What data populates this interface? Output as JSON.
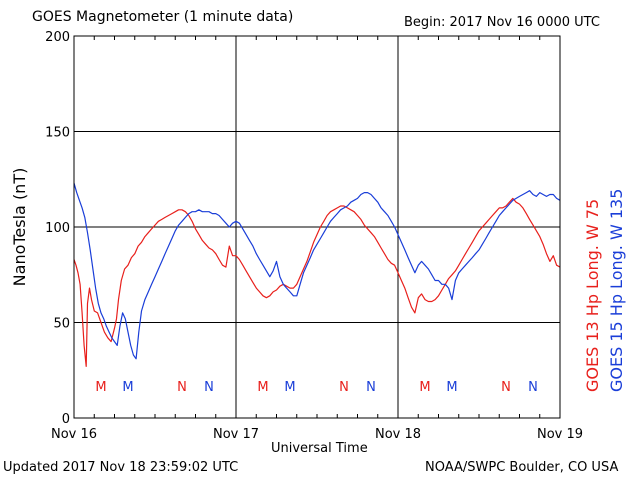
{
  "header": {
    "title": "GOES Magnetometer (1 minute data)",
    "begin": "Begin:  2017 Nov 16 0000 UTC"
  },
  "footer": {
    "updated": "Updated 2017 Nov 18 23:59:02 UTC",
    "credit": "NOAA/SWPC Boulder, CO USA"
  },
  "colors": {
    "goes13": "#e8201c",
    "goes15": "#1a3ed8",
    "grid": "#000000"
  },
  "chart_data": {
    "type": "line",
    "xlabel": "Universal Time",
    "ylabel": "NanoTesla (nT)",
    "ylim": [
      0,
      200
    ],
    "xlim": [
      0,
      72
    ],
    "x_unit": "hours since 2017 Nov 16 0000 UTC",
    "grid": true,
    "legend_position": "right-vertical",
    "y_ticks": [
      0,
      50,
      100,
      150,
      200
    ],
    "x_ticks": [
      {
        "x": 0,
        "label": "Nov 16"
      },
      {
        "x": 24,
        "label": "Nov 17"
      },
      {
        "x": 48,
        "label": "Nov 18"
      },
      {
        "x": 72,
        "label": "Nov 19"
      }
    ],
    "mn_markers": [
      {
        "x": 4,
        "label": "M",
        "series": "GOES 13"
      },
      {
        "x": 8,
        "label": "M",
        "series": "GOES 15"
      },
      {
        "x": 16,
        "label": "N",
        "series": "GOES 13"
      },
      {
        "x": 20,
        "label": "N",
        "series": "GOES 15"
      },
      {
        "x": 28,
        "label": "M",
        "series": "GOES 13"
      },
      {
        "x": 32,
        "label": "M",
        "series": "GOES 15"
      },
      {
        "x": 40,
        "label": "N",
        "series": "GOES 13"
      },
      {
        "x": 44,
        "label": "N",
        "series": "GOES 15"
      },
      {
        "x": 52,
        "label": "M",
        "series": "GOES 13"
      },
      {
        "x": 56,
        "label": "M",
        "series": "GOES 15"
      },
      {
        "x": 64,
        "label": "N",
        "series": "GOES 13"
      },
      {
        "x": 68,
        "label": "N",
        "series": "GOES 15"
      }
    ],
    "series": [
      {
        "name": "GOES 13 Hp  Long. W 75",
        "color": "#e8201c",
        "points": [
          [
            0,
            83
          ],
          [
            0.3,
            80
          ],
          [
            0.6,
            76
          ],
          [
            0.9,
            70
          ],
          [
            1.2,
            55
          ],
          [
            1.5,
            38
          ],
          [
            1.8,
            27
          ],
          [
            2.0,
            60
          ],
          [
            2.3,
            68
          ],
          [
            2.6,
            62
          ],
          [
            3.0,
            56
          ],
          [
            3.5,
            55
          ],
          [
            4.0,
            50
          ],
          [
            4.5,
            45
          ],
          [
            5.0,
            42
          ],
          [
            5.5,
            40
          ],
          [
            6.0,
            47
          ],
          [
            6.3,
            52
          ],
          [
            6.6,
            62
          ],
          [
            7.0,
            72
          ],
          [
            7.5,
            78
          ],
          [
            8.0,
            80
          ],
          [
            8.5,
            84
          ],
          [
            9.0,
            86
          ],
          [
            9.5,
            90
          ],
          [
            10.0,
            92
          ],
          [
            10.5,
            95
          ],
          [
            11.0,
            97
          ],
          [
            11.5,
            99
          ],
          [
            12.0,
            101
          ],
          [
            12.5,
            103
          ],
          [
            13.0,
            104
          ],
          [
            13.5,
            105
          ],
          [
            14.0,
            106
          ],
          [
            14.5,
            107
          ],
          [
            15.0,
            108
          ],
          [
            15.5,
            109
          ],
          [
            16.0,
            109
          ],
          [
            16.5,
            108
          ],
          [
            17.0,
            106
          ],
          [
            17.5,
            103
          ],
          [
            18.0,
            99
          ],
          [
            18.5,
            96
          ],
          [
            19.0,
            93
          ],
          [
            19.5,
            91
          ],
          [
            20.0,
            89
          ],
          [
            20.5,
            88
          ],
          [
            21.0,
            86
          ],
          [
            21.5,
            83
          ],
          [
            22.0,
            80
          ],
          [
            22.5,
            79
          ],
          [
            23.0,
            90
          ],
          [
            23.5,
            85
          ],
          [
            24.0,
            85
          ],
          [
            24.5,
            83
          ],
          [
            25.0,
            80
          ],
          [
            25.5,
            77
          ],
          [
            26.0,
            74
          ],
          [
            26.5,
            71
          ],
          [
            27.0,
            68
          ],
          [
            27.5,
            66
          ],
          [
            28.0,
            64
          ],
          [
            28.5,
            63
          ],
          [
            29.0,
            64
          ],
          [
            29.5,
            66
          ],
          [
            30.0,
            67
          ],
          [
            30.5,
            69
          ],
          [
            31.0,
            70
          ],
          [
            31.5,
            69
          ],
          [
            32.0,
            68
          ],
          [
            32.5,
            68
          ],
          [
            33.0,
            70
          ],
          [
            33.5,
            74
          ],
          [
            34.0,
            78
          ],
          [
            34.5,
            82
          ],
          [
            35.0,
            87
          ],
          [
            35.5,
            92
          ],
          [
            36.0,
            96
          ],
          [
            36.5,
            100
          ],
          [
            37.0,
            103
          ],
          [
            37.5,
            106
          ],
          [
            38.0,
            108
          ],
          [
            38.5,
            109
          ],
          [
            39.0,
            110
          ],
          [
            39.5,
            111
          ],
          [
            40.0,
            111
          ],
          [
            40.5,
            110
          ],
          [
            41.0,
            109
          ],
          [
            41.5,
            108
          ],
          [
            42.0,
            106
          ],
          [
            42.5,
            104
          ],
          [
            43.0,
            101
          ],
          [
            43.5,
            99
          ],
          [
            44.0,
            97
          ],
          [
            44.5,
            95
          ],
          [
            45.0,
            92
          ],
          [
            45.5,
            89
          ],
          [
            46.0,
            86
          ],
          [
            46.5,
            83
          ],
          [
            47.0,
            81
          ],
          [
            47.5,
            80
          ],
          [
            48.0,
            76
          ],
          [
            48.5,
            72
          ],
          [
            49.0,
            68
          ],
          [
            49.5,
            63
          ],
          [
            50.0,
            58
          ],
          [
            50.5,
            55
          ],
          [
            51.0,
            63
          ],
          [
            51.5,
            65
          ],
          [
            52.0,
            62
          ],
          [
            52.5,
            61
          ],
          [
            53.0,
            61
          ],
          [
            53.5,
            62
          ],
          [
            54.0,
            64
          ],
          [
            54.5,
            67
          ],
          [
            55.0,
            70
          ],
          [
            55.5,
            73
          ],
          [
            56.0,
            75
          ],
          [
            56.5,
            77
          ],
          [
            57.0,
            80
          ],
          [
            57.5,
            83
          ],
          [
            58.0,
            86
          ],
          [
            58.5,
            89
          ],
          [
            59.0,
            92
          ],
          [
            59.5,
            95
          ],
          [
            60.0,
            98
          ],
          [
            60.5,
            100
          ],
          [
            61.0,
            102
          ],
          [
            61.5,
            104
          ],
          [
            62.0,
            106
          ],
          [
            62.5,
            108
          ],
          [
            63.0,
            110
          ],
          [
            63.5,
            110
          ],
          [
            64.0,
            111
          ],
          [
            64.5,
            113
          ],
          [
            65.0,
            115
          ],
          [
            65.5,
            113
          ],
          [
            66.0,
            112
          ],
          [
            66.5,
            110
          ],
          [
            67.0,
            107
          ],
          [
            67.5,
            104
          ],
          [
            68.0,
            101
          ],
          [
            68.5,
            98
          ],
          [
            69.0,
            95
          ],
          [
            69.5,
            91
          ],
          [
            70.0,
            86
          ],
          [
            70.5,
            82
          ],
          [
            71.0,
            85
          ],
          [
            71.5,
            80
          ],
          [
            72.0,
            79
          ]
        ]
      },
      {
        "name": "GOES 15 Hp  Long. W 135",
        "color": "#1a3ed8",
        "points": [
          [
            0,
            123
          ],
          [
            0.4,
            118
          ],
          [
            0.8,
            114
          ],
          [
            1.2,
            110
          ],
          [
            1.6,
            105
          ],
          [
            2.0,
            97
          ],
          [
            2.4,
            88
          ],
          [
            2.8,
            78
          ],
          [
            3.2,
            68
          ],
          [
            3.6,
            60
          ],
          [
            4.0,
            55
          ],
          [
            4.4,
            52
          ],
          [
            4.8,
            48
          ],
          [
            5.2,
            45
          ],
          [
            5.6,
            42
          ],
          [
            6.0,
            40
          ],
          [
            6.4,
            38
          ],
          [
            6.8,
            48
          ],
          [
            7.2,
            55
          ],
          [
            7.6,
            52
          ],
          [
            8.0,
            45
          ],
          [
            8.4,
            38
          ],
          [
            8.8,
            33
          ],
          [
            9.2,
            31
          ],
          [
            9.6,
            45
          ],
          [
            10.0,
            56
          ],
          [
            10.5,
            62
          ],
          [
            11.0,
            66
          ],
          [
            11.5,
            70
          ],
          [
            12.0,
            74
          ],
          [
            12.5,
            78
          ],
          [
            13.0,
            82
          ],
          [
            13.5,
            86
          ],
          [
            14.0,
            90
          ],
          [
            14.5,
            94
          ],
          [
            15.0,
            98
          ],
          [
            15.5,
            101
          ],
          [
            16.0,
            103
          ],
          [
            16.5,
            105
          ],
          [
            17.0,
            107
          ],
          [
            17.5,
            108
          ],
          [
            18.0,
            108
          ],
          [
            18.5,
            109
          ],
          [
            19.0,
            108
          ],
          [
            19.5,
            108
          ],
          [
            20.0,
            108
          ],
          [
            20.5,
            107
          ],
          [
            21.0,
            107
          ],
          [
            21.5,
            106
          ],
          [
            22.0,
            104
          ],
          [
            22.5,
            102
          ],
          [
            23.0,
            100
          ],
          [
            23.5,
            102
          ],
          [
            24.0,
            103
          ],
          [
            24.5,
            102
          ],
          [
            25.0,
            99
          ],
          [
            25.5,
            96
          ],
          [
            26.0,
            93
          ],
          [
            26.5,
            90
          ],
          [
            27.0,
            86
          ],
          [
            27.5,
            83
          ],
          [
            28.0,
            80
          ],
          [
            28.5,
            77
          ],
          [
            29.0,
            74
          ],
          [
            29.5,
            77
          ],
          [
            30.0,
            82
          ],
          [
            30.5,
            74
          ],
          [
            31.0,
            70
          ],
          [
            31.5,
            68
          ],
          [
            32.0,
            66
          ],
          [
            32.5,
            64
          ],
          [
            33.0,
            64
          ],
          [
            33.5,
            70
          ],
          [
            34.0,
            76
          ],
          [
            34.5,
            80
          ],
          [
            35.0,
            84
          ],
          [
            35.5,
            88
          ],
          [
            36.0,
            91
          ],
          [
            36.5,
            94
          ],
          [
            37.0,
            97
          ],
          [
            37.5,
            100
          ],
          [
            38.0,
            103
          ],
          [
            38.5,
            105
          ],
          [
            39.0,
            107
          ],
          [
            39.5,
            109
          ],
          [
            40.0,
            110
          ],
          [
            40.5,
            111
          ],
          [
            41.0,
            113
          ],
          [
            41.5,
            114
          ],
          [
            42.0,
            115
          ],
          [
            42.5,
            117
          ],
          [
            43.0,
            118
          ],
          [
            43.5,
            118
          ],
          [
            44.0,
            117
          ],
          [
            44.5,
            115
          ],
          [
            45.0,
            113
          ],
          [
            45.5,
            110
          ],
          [
            46.0,
            108
          ],
          [
            46.5,
            106
          ],
          [
            47.0,
            103
          ],
          [
            47.5,
            100
          ],
          [
            48.0,
            96
          ],
          [
            48.5,
            92
          ],
          [
            49.0,
            88
          ],
          [
            49.5,
            84
          ],
          [
            50.0,
            80
          ],
          [
            50.5,
            76
          ],
          [
            51.0,
            80
          ],
          [
            51.5,
            82
          ],
          [
            52.0,
            80
          ],
          [
            52.5,
            78
          ],
          [
            53.0,
            75
          ],
          [
            53.5,
            72
          ],
          [
            54.0,
            72
          ],
          [
            54.5,
            70
          ],
          [
            55.0,
            70
          ],
          [
            55.5,
            68
          ],
          [
            56.0,
            62
          ],
          [
            56.5,
            72
          ],
          [
            57.0,
            76
          ],
          [
            57.5,
            78
          ],
          [
            58.0,
            80
          ],
          [
            58.5,
            82
          ],
          [
            59.0,
            84
          ],
          [
            59.5,
            86
          ],
          [
            60.0,
            88
          ],
          [
            60.5,
            91
          ],
          [
            61.0,
            94
          ],
          [
            61.5,
            97
          ],
          [
            62.0,
            100
          ],
          [
            62.5,
            103
          ],
          [
            63.0,
            106
          ],
          [
            63.5,
            108
          ],
          [
            64.0,
            110
          ],
          [
            64.5,
            112
          ],
          [
            65.0,
            114
          ],
          [
            65.5,
            115
          ],
          [
            66.0,
            116
          ],
          [
            66.5,
            117
          ],
          [
            67.0,
            118
          ],
          [
            67.5,
            119
          ],
          [
            68.0,
            117
          ],
          [
            68.5,
            116
          ],
          [
            69.0,
            118
          ],
          [
            69.5,
            117
          ],
          [
            70.0,
            116
          ],
          [
            70.5,
            117
          ],
          [
            71.0,
            117
          ],
          [
            71.5,
            115
          ],
          [
            72.0,
            114
          ]
        ]
      }
    ]
  }
}
